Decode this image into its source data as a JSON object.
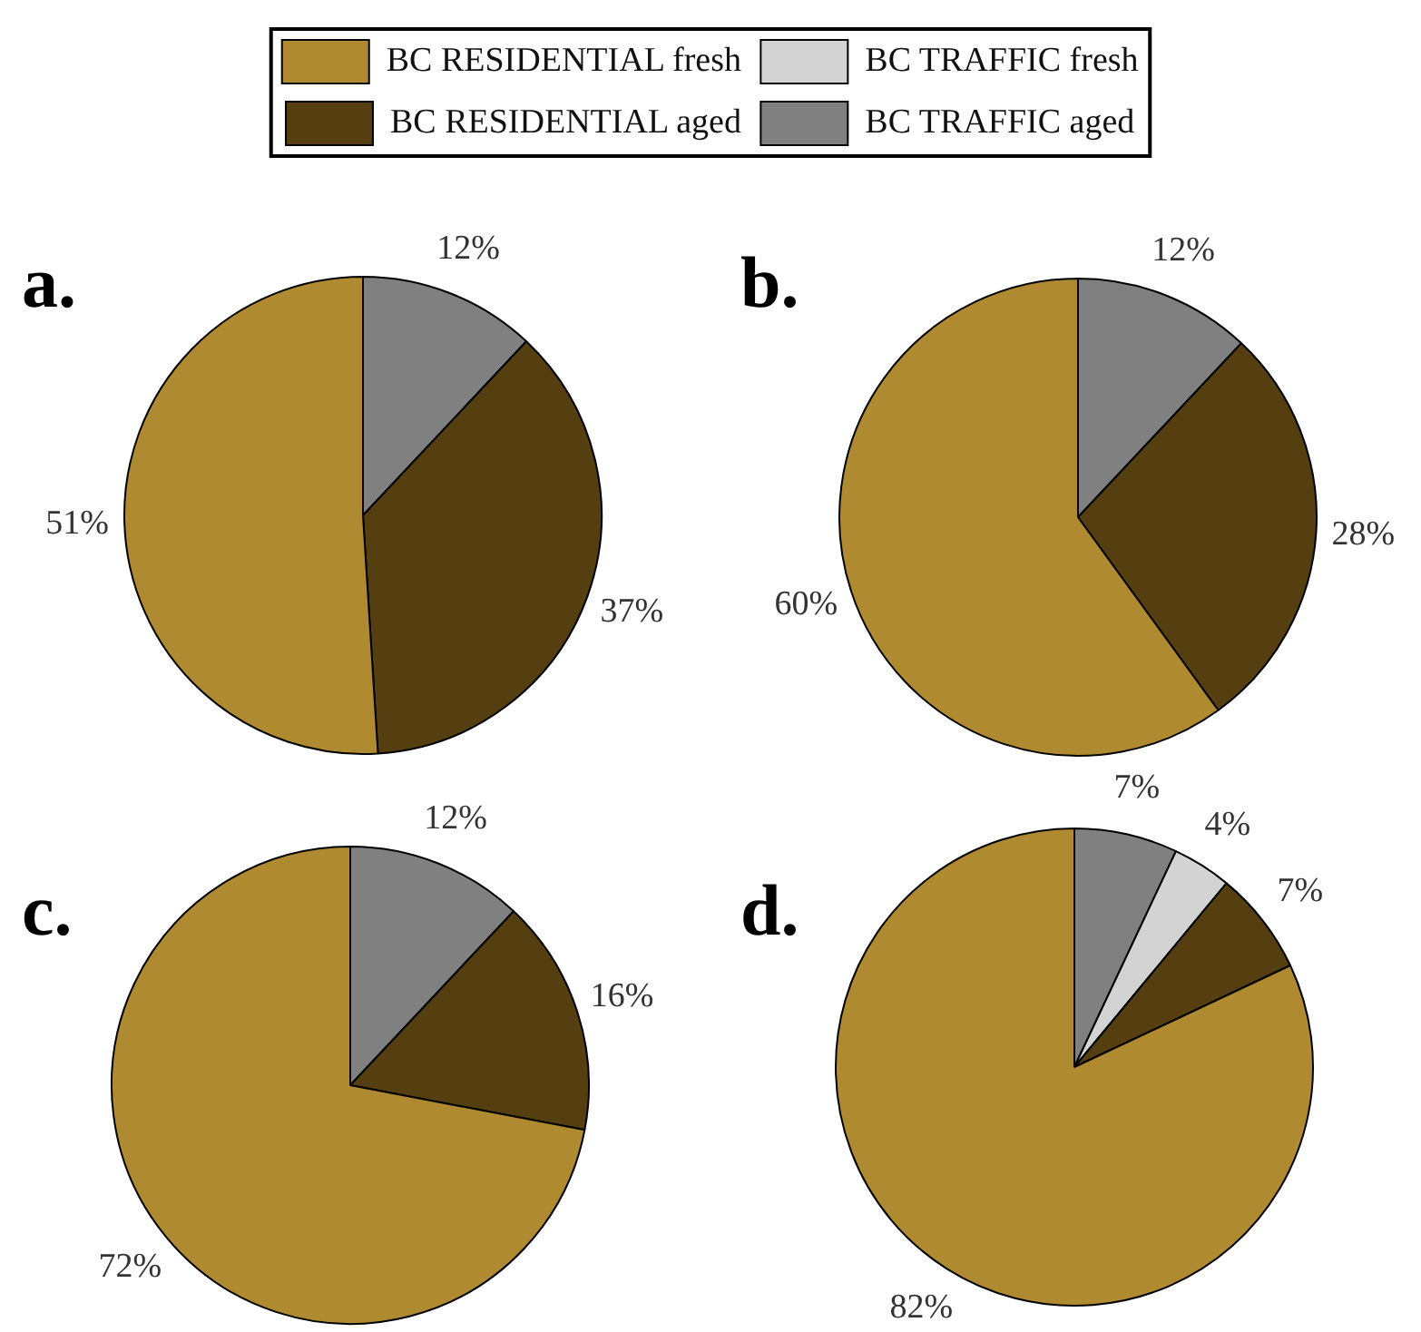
{
  "chart_data": [
    {
      "type": "pie",
      "title": "a.",
      "categories": [
        null,
        null,
        null
      ],
      "values": [
        12,
        37,
        51
      ],
      "colors": [
        "#808080",
        "#553f10",
        "#b08a30"
      ],
      "value_labels": [
        "12%",
        "37%",
        "51%"
      ]
    },
    {
      "type": "pie",
      "title": "b.",
      "categories": [
        null,
        null,
        null
      ],
      "values": [
        12,
        28,
        60
      ],
      "colors": [
        "#808080",
        "#553f10",
        "#b08a30"
      ],
      "value_labels": [
        "12%",
        "28%",
        "60%"
      ]
    },
    {
      "type": "pie",
      "title": "c.",
      "categories": [
        null,
        null,
        null
      ],
      "values": [
        12,
        16,
        72
      ],
      "colors": [
        "#808080",
        "#553f10",
        "#b08a30"
      ],
      "value_labels": [
        "12%",
        "16%",
        "72%"
      ]
    },
    {
      "type": "pie",
      "title": "d.",
      "categories": [
        "BC TRAFFIC aged",
        "BC TRAFFIC fresh",
        "BC RESIDENTIAL aged",
        "BC RESIDENTIAL fresh"
      ],
      "values": [
        7,
        4,
        7,
        82
      ],
      "colors": [
        "#808080",
        "#d3d3d3",
        "#553f10",
        "#b08a30"
      ],
      "value_labels": [
        "7%",
        "4%",
        "7%",
        "82%"
      ],
      "legend": "top"
    }
  ]
}
